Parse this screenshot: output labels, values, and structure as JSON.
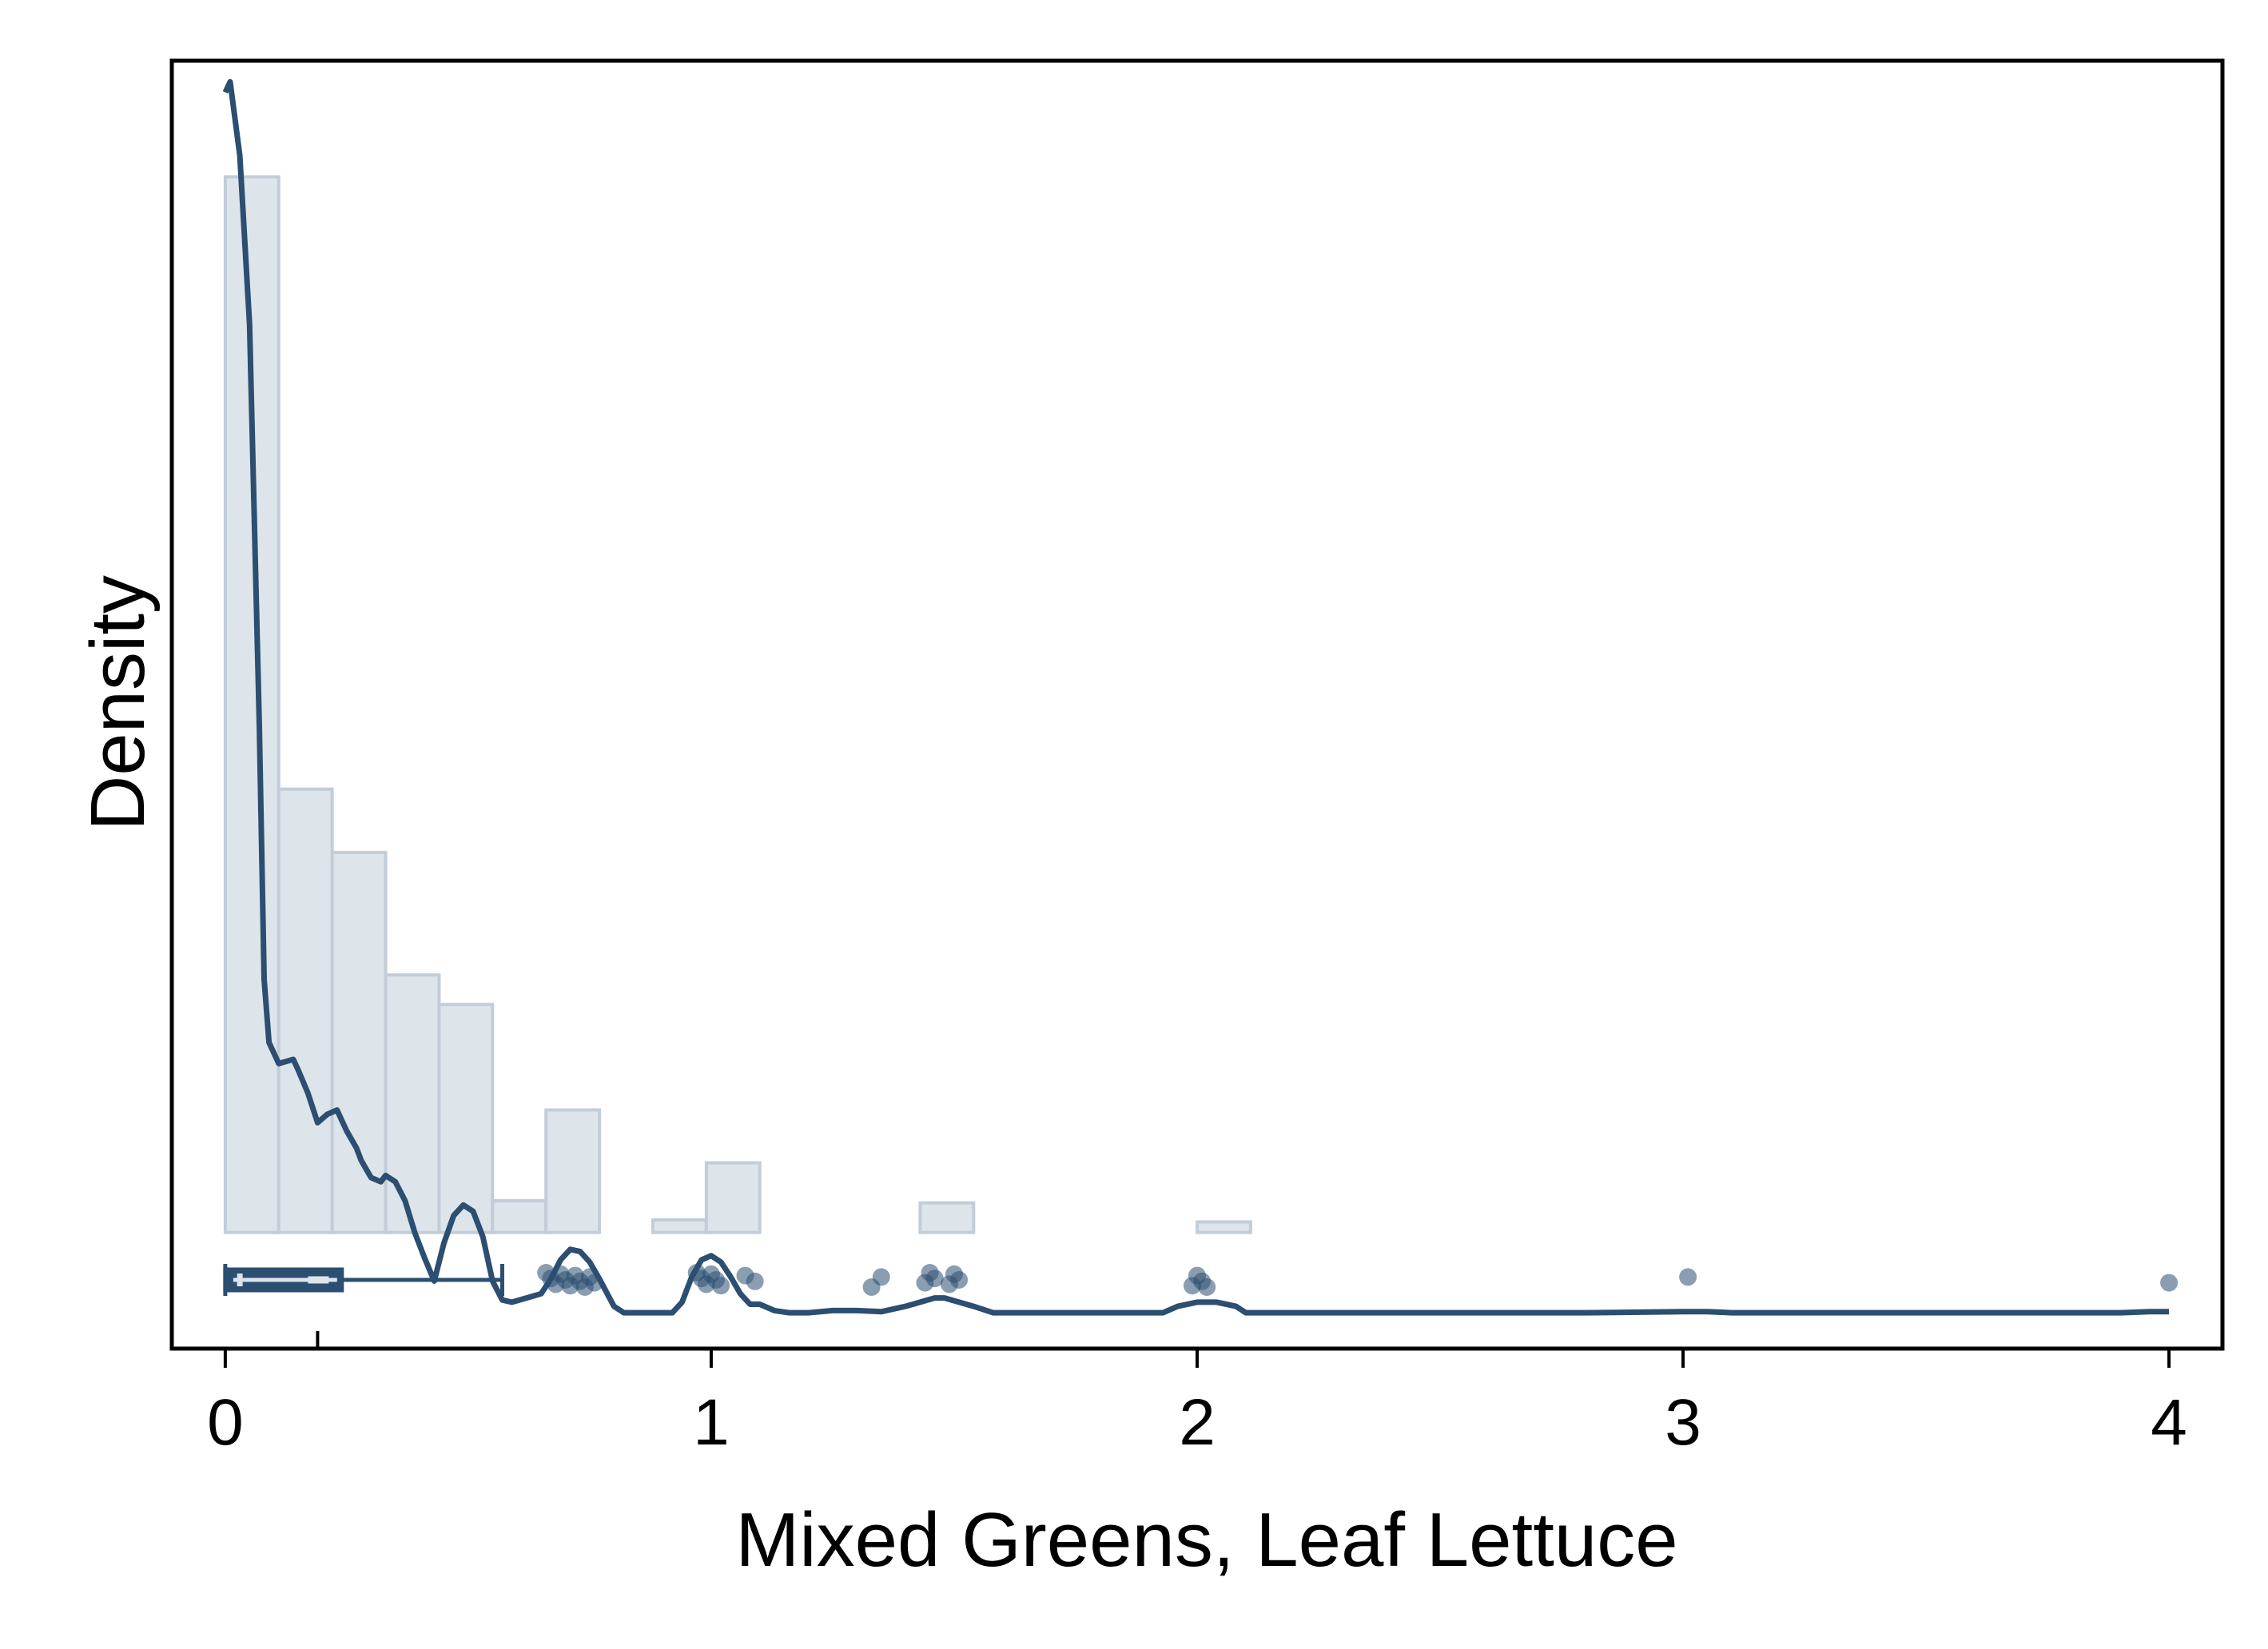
{
  "chart_data": {
    "type": "histogram",
    "title": "",
    "xlabel": "Mixed Greens, Leaf Lettuce",
    "ylabel": "Density",
    "xlim": [
      -0.11,
      4.11
    ],
    "ylim": [
      -0.55,
      5.55
    ],
    "x_ticks": [
      0,
      1,
      2,
      3,
      4
    ],
    "x_tick_labels": [
      "0",
      "1",
      "2",
      "3",
      "4"
    ],
    "grid": false,
    "histogram": {
      "bin_width": 0.11,
      "bins": [
        {
          "x0": 0.0,
          "x1": 0.11,
          "density": 5.0
        },
        {
          "x0": 0.11,
          "x1": 0.22,
          "density": 2.1
        },
        {
          "x0": 0.22,
          "x1": 0.33,
          "density": 1.8
        },
        {
          "x0": 0.33,
          "x1": 0.44,
          "density": 1.22
        },
        {
          "x0": 0.44,
          "x1": 0.55,
          "density": 1.08
        },
        {
          "x0": 0.55,
          "x1": 0.66,
          "density": 0.15
        },
        {
          "x0": 0.66,
          "x1": 0.77,
          "density": 0.58
        },
        {
          "x0": 0.88,
          "x1": 0.99,
          "density": 0.06
        },
        {
          "x0": 0.99,
          "x1": 1.1,
          "density": 0.33
        },
        {
          "x0": 1.43,
          "x1": 1.54,
          "density": 0.14
        },
        {
          "x0": 2.0,
          "x1": 2.11,
          "density": 0.05
        }
      ]
    },
    "density_curve": {
      "x": [
        0.0,
        0.01,
        0.03,
        0.05,
        0.07,
        0.08,
        0.09,
        0.11,
        0.14,
        0.15,
        0.17,
        0.19,
        0.21,
        0.23,
        0.25,
        0.27,
        0.28,
        0.3,
        0.32,
        0.33,
        0.35,
        0.37,
        0.39,
        0.41,
        0.43,
        0.45,
        0.47,
        0.49,
        0.51,
        0.53,
        0.55,
        0.57,
        0.59,
        0.62,
        0.65,
        0.67,
        0.69,
        0.71,
        0.73,
        0.75,
        0.77,
        0.8,
        0.82,
        0.84,
        0.88,
        0.92,
        0.94,
        0.96,
        0.98,
        1.0,
        1.02,
        1.04,
        1.06,
        1.08,
        1.1,
        1.13,
        1.16,
        1.2,
        1.25,
        1.3,
        1.35,
        1.4,
        1.43,
        1.46,
        1.48,
        1.51,
        1.54,
        1.58,
        1.65,
        1.75,
        1.85,
        1.93,
        1.96,
        2.0,
        2.04,
        2.08,
        2.1,
        2.2,
        2.4,
        2.6,
        2.8,
        3.0,
        3.05,
        3.1,
        3.3,
        3.5,
        3.7,
        3.9,
        3.96,
        4.0
      ],
      "y": [
        5.4,
        5.45,
        5.1,
        4.3,
        2.4,
        1.2,
        0.9,
        0.8,
        0.82,
        0.77,
        0.66,
        0.52,
        0.56,
        0.58,
        0.48,
        0.4,
        0.34,
        0.26,
        0.24,
        0.27,
        0.24,
        0.15,
        0.0,
        -0.12,
        -0.23,
        -0.05,
        0.08,
        0.13,
        0.1,
        -0.02,
        -0.23,
        -0.32,
        -0.33,
        -0.31,
        -0.29,
        -0.22,
        -0.13,
        -0.08,
        -0.09,
        -0.14,
        -0.22,
        -0.35,
        -0.38,
        -0.38,
        -0.38,
        -0.38,
        -0.33,
        -0.21,
        -0.13,
        -0.11,
        -0.14,
        -0.21,
        -0.29,
        -0.34,
        -0.34,
        -0.37,
        -0.38,
        -0.38,
        -0.37,
        -0.37,
        -0.375,
        -0.35,
        -0.33,
        -0.31,
        -0.31,
        -0.33,
        -0.35,
        -0.38,
        -0.38,
        -0.38,
        -0.38,
        -0.38,
        -0.35,
        -0.33,
        -0.33,
        -0.35,
        -0.38,
        -0.38,
        -0.38,
        -0.38,
        -0.38,
        -0.375,
        -0.375,
        -0.38,
        -0.38,
        -0.38,
        -0.38,
        -0.38,
        -0.375,
        -0.375
      ]
    },
    "boxplot": {
      "min": 0.0,
      "q1": 0.0,
      "median": 0.03,
      "q3": 0.24,
      "whisker_high": 0.57,
      "mean": 0.19
    },
    "outliers": [
      0.66,
      0.67,
      0.68,
      0.69,
      0.7,
      0.71,
      0.72,
      0.73,
      0.74,
      0.75,
      0.76,
      0.97,
      0.98,
      0.99,
      1.0,
      1.01,
      1.02,
      1.07,
      1.09,
      1.33,
      1.35,
      1.44,
      1.45,
      1.46,
      1.49,
      1.5,
      1.51,
      1.99,
      2.0,
      2.01,
      2.02,
      3.01,
      4.0
    ],
    "colors": {
      "bar_fill": "#dde4ea",
      "bar_stroke": "#c3cdd8",
      "curve": "#2b4e71",
      "box": "#2b4e71",
      "points": "#2b4e71",
      "median_marker": "#dde4ea"
    }
  }
}
